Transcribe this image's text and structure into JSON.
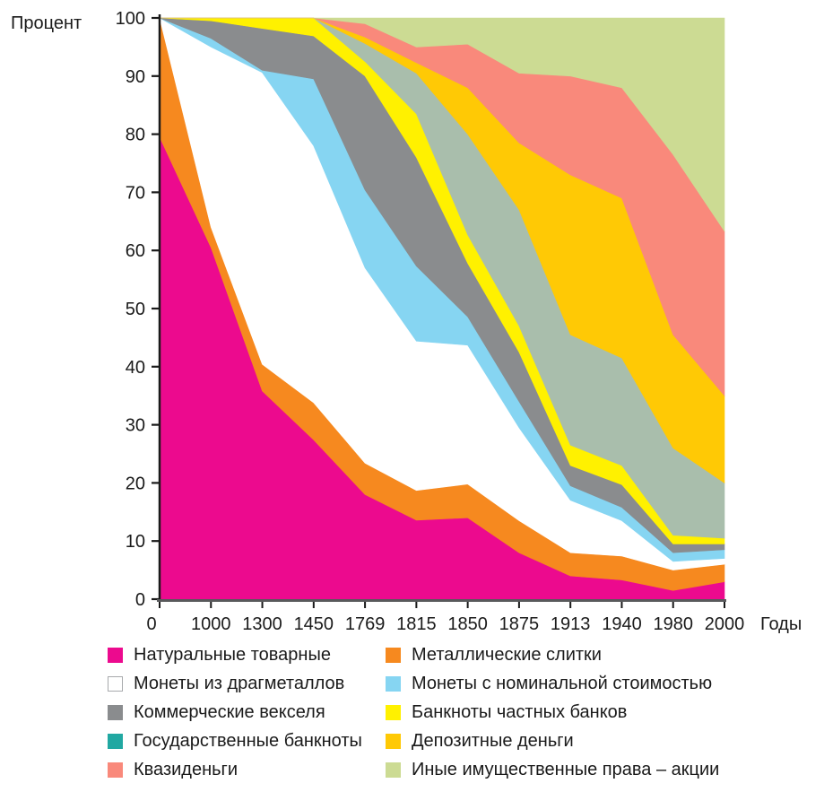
{
  "y_axis_title": "Процент",
  "x_axis_title": "Годы",
  "axes": {
    "y_ticks": [
      "0",
      "10",
      "20",
      "30",
      "40",
      "50",
      "60",
      "70",
      "80",
      "90",
      "100"
    ],
    "x_ticks": [
      "0",
      "1000",
      "1300",
      "1450",
      "1769",
      "1815",
      "1850",
      "1875",
      "1913",
      "1940",
      "1980",
      "2000"
    ],
    "axis_color": "#1a1a1a",
    "x_axis_line_color": "#58595b"
  },
  "chart_data": {
    "type": "area",
    "stacked": true,
    "title": "",
    "xlabel": "Годы",
    "ylabel": "Процент",
    "ylim": [
      0,
      100
    ],
    "grid": false,
    "legend_position": "bottom",
    "categories": [
      "0",
      "1000",
      "1300",
      "1450",
      "1769",
      "1815",
      "1850",
      "1875",
      "1913",
      "1940",
      "1980",
      "2000"
    ],
    "series": [
      {
        "name": "Натуральные товарные",
        "color": "#EC0A8E",
        "legend_color": "#EC0A8E",
        "values": [
          79.5,
          60.5,
          35.8,
          27.4,
          18.0,
          13.6,
          14.0,
          8.0,
          4.0,
          3.3,
          1.5,
          3.0
        ]
      },
      {
        "name": "Металлические слитки",
        "color": "#F6891F",
        "legend_color": "#F6891F",
        "values": [
          20.5,
          3.5,
          4.6,
          6.4,
          5.4,
          5.1,
          5.8,
          5.5,
          4.0,
          4.1,
          3.5,
          3.0
        ]
      },
      {
        "name": "Монеты из драгметаллов",
        "color": "#FFFFFF",
        "legend_color": "#FFFFFF",
        "legend_border": "#a7a9ac",
        "values": [
          0.0,
          31.0,
          50.2,
          44.2,
          33.6,
          25.7,
          23.9,
          16.0,
          9.0,
          6.1,
          1.5,
          1.0
        ]
      },
      {
        "name": "Монеты с номинальной стоимостью",
        "color": "#86D5F2",
        "legend_color": "#86D5F2",
        "values": [
          0.0,
          1.5,
          0.4,
          11.5,
          13.4,
          12.9,
          4.9,
          4.5,
          2.5,
          2.3,
          1.5,
          1.5
        ]
      },
      {
        "name": "Коммерческие векселя",
        "color": "#8A8C8E",
        "legend_color": "#8A8C8E",
        "values": [
          0.0,
          3.0,
          7.2,
          7.4,
          19.6,
          18.7,
          9.2,
          8.5,
          3.5,
          3.9,
          1.5,
          1.0
        ]
      },
      {
        "name": "Банкноты частных банков",
        "color": "#FFF100",
        "legend_color": "#FFF100",
        "values": [
          0.0,
          0.5,
          1.8,
          3.1,
          2.5,
          7.5,
          4.9,
          4.5,
          3.5,
          3.3,
          1.5,
          1.0
        ]
      },
      {
        "name": "Государственные банкноты",
        "color": "#A9BEAC",
        "legend_color": "#21A8A2",
        "values": [
          0.0,
          0.0,
          0.0,
          0.0,
          3.1,
          7.0,
          17.3,
          20.0,
          19.0,
          18.5,
          15.0,
          9.5
        ]
      },
      {
        "name": "Депозитные деньги",
        "color": "#FFC905",
        "legend_color": "#FFC905",
        "values": [
          0.0,
          0.0,
          0.0,
          0.0,
          1.1,
          1.8,
          8.0,
          11.5,
          27.5,
          27.5,
          19.5,
          15.0
        ]
      },
      {
        "name": "Квазиденьги",
        "color": "#F9897B",
        "legend_color": "#F9897B",
        "values": [
          0.0,
          0.0,
          0.0,
          0.0,
          2.3,
          2.7,
          7.5,
          12.0,
          17.0,
          19.0,
          31.0,
          28.3
        ]
      },
      {
        "name": "Иные имущественные права – акции",
        "color": "#CCDB93",
        "legend_color": "#CCDB93",
        "values": [
          0.0,
          0.0,
          0.0,
          0.0,
          1.0,
          5.0,
          4.5,
          9.5,
          10.0,
          12.0,
          23.5,
          36.7
        ]
      }
    ]
  },
  "legend": {
    "columns": [
      [
        0,
        2,
        4,
        6,
        8
      ],
      [
        1,
        3,
        5,
        7,
        9
      ]
    ]
  }
}
